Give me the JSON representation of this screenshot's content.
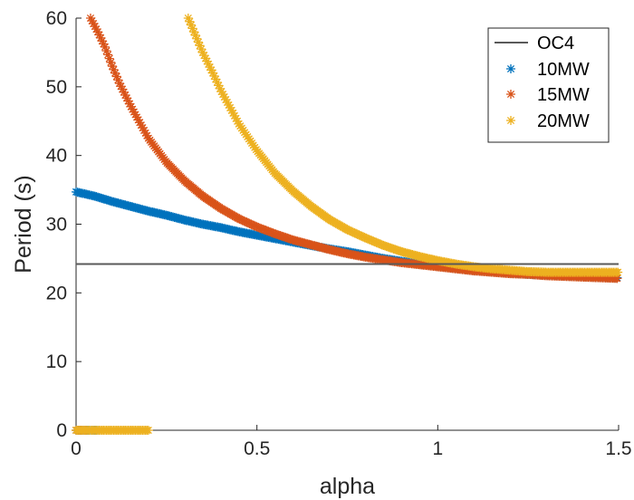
{
  "chart_data": {
    "type": "scatter",
    "title": "",
    "xlabel": "alpha",
    "ylabel": "Period (s)",
    "xlim": [
      0,
      1.5
    ],
    "ylim": [
      0,
      60
    ],
    "xticks": [
      "0",
      "0.5",
      "1",
      "1.5"
    ],
    "yticks": [
      "0",
      "10",
      "20",
      "30",
      "40",
      "50",
      "60"
    ],
    "grid": false,
    "legend_position": "top-right",
    "reference_line": {
      "name": "OC4",
      "value": 24.2,
      "color": "#595959"
    },
    "series": [
      {
        "name": "10MW",
        "marker": "*",
        "color": "#0072BD",
        "points": [
          [
            0.0,
            34.7
          ],
          [
            0.05,
            34.1
          ],
          [
            0.1,
            33.3
          ],
          [
            0.15,
            32.6
          ],
          [
            0.2,
            31.9
          ],
          [
            0.25,
            31.3
          ],
          [
            0.3,
            30.6
          ],
          [
            0.35,
            30.0
          ],
          [
            0.4,
            29.5
          ],
          [
            0.45,
            28.9
          ],
          [
            0.5,
            28.4
          ],
          [
            0.55,
            27.9
          ],
          [
            0.6,
            27.4
          ],
          [
            0.65,
            26.9
          ],
          [
            0.7,
            26.4
          ],
          [
            0.75,
            26.0
          ],
          [
            0.8,
            25.5
          ],
          [
            0.85,
            25.0
          ],
          [
            0.9,
            24.6
          ],
          [
            0.95,
            24.2
          ],
          [
            1.0,
            23.9
          ],
          [
            1.05,
            23.6
          ],
          [
            1.1,
            23.3
          ],
          [
            1.15,
            23.1
          ],
          [
            1.2,
            22.9
          ],
          [
            1.25,
            22.7
          ],
          [
            1.3,
            22.6
          ],
          [
            1.35,
            22.5
          ],
          [
            1.4,
            22.4
          ],
          [
            1.45,
            22.3
          ],
          [
            1.5,
            22.2
          ]
        ],
        "zero_segment": [
          0.0,
          0.06
        ]
      },
      {
        "name": "15MW",
        "marker": "*",
        "color": "#D95319",
        "points": [
          [
            0.04,
            60.0
          ],
          [
            0.06,
            58.0
          ],
          [
            0.08,
            55.8
          ],
          [
            0.1,
            53.0
          ],
          [
            0.12,
            50.5
          ],
          [
            0.15,
            47.3
          ],
          [
            0.2,
            42.5
          ],
          [
            0.25,
            39.0
          ],
          [
            0.3,
            36.3
          ],
          [
            0.35,
            34.1
          ],
          [
            0.4,
            32.3
          ],
          [
            0.45,
            30.8
          ],
          [
            0.5,
            29.6
          ],
          [
            0.55,
            28.6
          ],
          [
            0.6,
            27.7
          ],
          [
            0.65,
            27.0
          ],
          [
            0.7,
            26.3
          ],
          [
            0.75,
            25.7
          ],
          [
            0.8,
            25.2
          ],
          [
            0.85,
            24.8
          ],
          [
            0.9,
            24.4
          ],
          [
            0.95,
            24.1
          ],
          [
            1.0,
            23.8
          ],
          [
            1.05,
            23.5
          ],
          [
            1.1,
            23.2
          ],
          [
            1.15,
            23.0
          ],
          [
            1.2,
            22.8
          ],
          [
            1.25,
            22.7
          ],
          [
            1.3,
            22.5
          ],
          [
            1.35,
            22.4
          ],
          [
            1.4,
            22.3
          ],
          [
            1.45,
            22.2
          ],
          [
            1.5,
            22.1
          ]
        ],
        "zero_segment": [
          0.0,
          0.03
        ]
      },
      {
        "name": "20MW",
        "marker": "*",
        "color": "#EDB120",
        "points": [
          [
            0.31,
            60.0
          ],
          [
            0.33,
            57.5
          ],
          [
            0.35,
            55.0
          ],
          [
            0.38,
            51.8
          ],
          [
            0.4,
            49.5
          ],
          [
            0.45,
            44.6
          ],
          [
            0.5,
            40.7
          ],
          [
            0.55,
            37.4
          ],
          [
            0.6,
            34.8
          ],
          [
            0.65,
            32.6
          ],
          [
            0.7,
            30.7
          ],
          [
            0.75,
            29.2
          ],
          [
            0.8,
            28.0
          ],
          [
            0.85,
            26.9
          ],
          [
            0.9,
            26.0
          ],
          [
            0.95,
            25.3
          ],
          [
            1.0,
            24.7
          ],
          [
            1.05,
            24.2
          ],
          [
            1.1,
            23.8
          ],
          [
            1.15,
            23.5
          ],
          [
            1.2,
            23.3
          ],
          [
            1.25,
            23.1
          ],
          [
            1.3,
            23.0
          ],
          [
            1.35,
            23.0
          ],
          [
            1.4,
            23.0
          ],
          [
            1.45,
            23.0
          ],
          [
            1.5,
            23.0
          ]
        ],
        "zero_segment": [
          0.0,
          0.2
        ]
      }
    ]
  }
}
